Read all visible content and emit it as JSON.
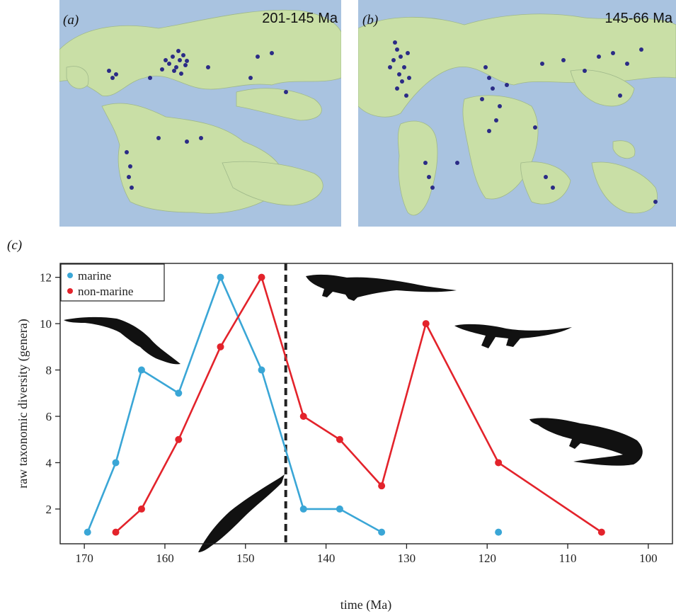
{
  "panels": {
    "a": {
      "letter": "(a)",
      "title": "201-145 Ma"
    },
    "b": {
      "letter": "(b)",
      "title": "145-66 Ma"
    },
    "c": {
      "letter": "(c)"
    }
  },
  "colors": {
    "ocean": "#a9c3e0",
    "land": "#c9dfa6",
    "occurrence": "#2b2b86",
    "marine": "#3aa6d6",
    "non_marine": "#e3232b",
    "boundary": "#222222"
  },
  "chart_data": {
    "type": "line",
    "xlabel": "time (Ma)",
    "ylabel": "raw taxonomic diversity (genera)",
    "xlim": [
      173,
      97
    ],
    "ylim": [
      0.5,
      12.6
    ],
    "x_ticks": [
      170,
      160,
      150,
      140,
      130,
      120,
      110,
      100
    ],
    "y_ticks": [
      2,
      4,
      6,
      8,
      10,
      12
    ],
    "boundary_line": 145,
    "legend_position": "top-left",
    "series": [
      {
        "name": "marine",
        "color": "#3aa6d6",
        "segments": [
          [
            [
              169.6,
              1
            ],
            [
              166.1,
              4
            ],
            [
              162.9,
              8
            ],
            [
              158.3,
              7
            ],
            [
              153.1,
              12
            ],
            [
              148.0,
              8
            ],
            [
              142.8,
              2
            ],
            [
              138.3,
              2
            ],
            [
              133.1,
              1
            ]
          ],
          [
            [
              118.6,
              1
            ]
          ]
        ]
      },
      {
        "name": "non-marine",
        "color": "#e3232b",
        "segments": [
          [
            [
              166.1,
              1
            ],
            [
              162.9,
              2
            ],
            [
              158.3,
              5
            ],
            [
              153.1,
              9
            ],
            [
              148.0,
              12
            ],
            [
              142.8,
              6
            ],
            [
              138.3,
              5
            ],
            [
              133.1,
              3
            ],
            [
              127.6,
              10
            ],
            [
              118.6,
              4
            ],
            [
              105.8,
              1
            ]
          ]
        ]
      }
    ]
  }
}
